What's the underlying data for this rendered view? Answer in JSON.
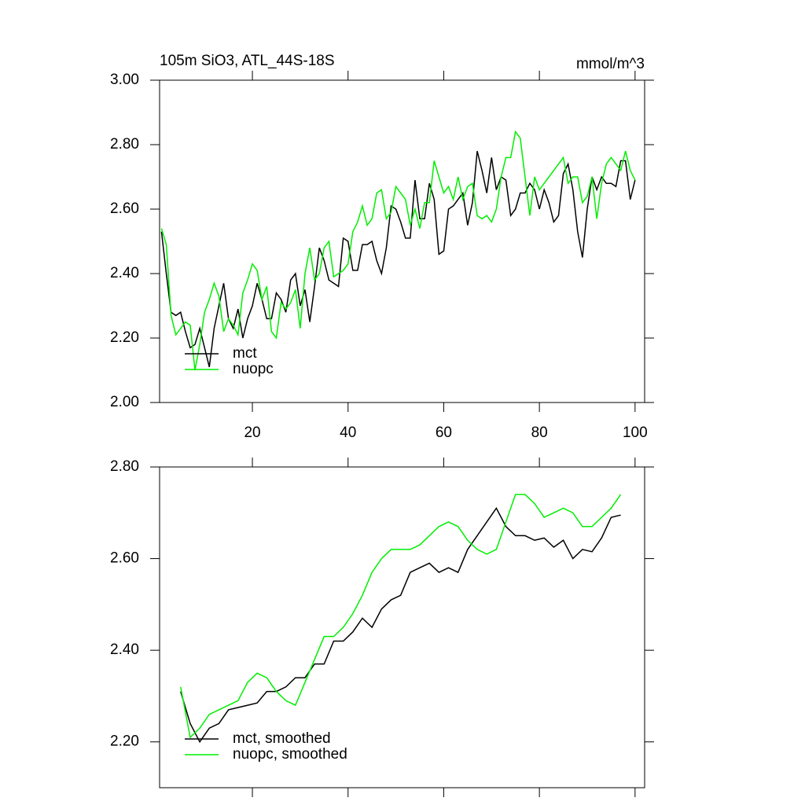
{
  "chart_data": [
    {
      "type": "line",
      "title": "105m SiO3, ATL_44S-18S",
      "units": "mmol/m^3",
      "x": [
        1,
        2,
        3,
        4,
        5,
        6,
        7,
        8,
        9,
        10,
        11,
        12,
        13,
        14,
        15,
        16,
        17,
        18,
        19,
        20,
        21,
        22,
        23,
        24,
        25,
        26,
        27,
        28,
        29,
        30,
        31,
        32,
        33,
        34,
        35,
        36,
        37,
        38,
        39,
        40,
        41,
        42,
        43,
        44,
        45,
        46,
        47,
        48,
        49,
        50,
        51,
        52,
        53,
        54,
        55,
        56,
        57,
        58,
        59,
        60,
        61,
        62,
        63,
        64,
        65,
        66,
        67,
        68,
        69,
        70,
        71,
        72,
        73,
        74,
        75,
        76,
        77,
        78,
        79,
        80,
        81,
        82,
        83,
        84,
        85,
        86,
        87,
        88,
        89,
        90,
        91,
        92,
        93,
        94,
        95,
        96,
        97,
        98,
        99,
        100
      ],
      "series": [
        {
          "name": "mct",
          "color": "#000000",
          "values": [
            2.53,
            2.4,
            2.28,
            2.27,
            2.28,
            2.22,
            2.17,
            2.18,
            2.23,
            2.17,
            2.11,
            2.23,
            2.3,
            2.37,
            2.26,
            2.23,
            2.29,
            2.2,
            2.26,
            2.3,
            2.37,
            2.32,
            2.26,
            2.26,
            2.34,
            2.32,
            2.28,
            2.38,
            2.4,
            2.3,
            2.35,
            2.25,
            2.36,
            2.48,
            2.44,
            2.38,
            2.37,
            2.36,
            2.51,
            2.5,
            2.41,
            2.41,
            2.49,
            2.49,
            2.5,
            2.44,
            2.4,
            2.48,
            2.61,
            2.6,
            2.56,
            2.51,
            2.51,
            2.69,
            2.57,
            2.57,
            2.68,
            2.63,
            2.46,
            2.47,
            2.6,
            2.61,
            2.63,
            2.65,
            2.55,
            2.62,
            2.78,
            2.72,
            2.65,
            2.76,
            2.66,
            2.7,
            2.69,
            2.58,
            2.6,
            2.65,
            2.65,
            2.68,
            2.66,
            2.6,
            2.66,
            2.62,
            2.56,
            2.58,
            2.71,
            2.74,
            2.66,
            2.53,
            2.45,
            2.6,
            2.7,
            2.66,
            2.7,
            2.68,
            2.68,
            2.67,
            2.75,
            2.75,
            2.63,
            2.69
          ]
        },
        {
          "name": "nuopc",
          "color": "#00ee00",
          "values": [
            2.54,
            2.49,
            2.27,
            2.21,
            2.23,
            2.25,
            2.24,
            2.1,
            2.18,
            2.28,
            2.32,
            2.37,
            2.33,
            2.22,
            2.26,
            2.24,
            2.21,
            2.34,
            2.38,
            2.43,
            2.41,
            2.32,
            2.36,
            2.22,
            2.2,
            2.31,
            2.29,
            2.31,
            2.35,
            2.23,
            2.4,
            2.48,
            2.38,
            2.4,
            2.48,
            2.5,
            2.39,
            2.4,
            2.41,
            2.43,
            2.53,
            2.56,
            2.61,
            2.55,
            2.57,
            2.65,
            2.66,
            2.57,
            2.59,
            2.67,
            2.65,
            2.63,
            2.55,
            2.6,
            2.54,
            2.62,
            2.62,
            2.75,
            2.7,
            2.65,
            2.67,
            2.63,
            2.7,
            2.63,
            2.67,
            2.68,
            2.58,
            2.57,
            2.58,
            2.56,
            2.6,
            2.7,
            2.76,
            2.76,
            2.84,
            2.82,
            2.7,
            2.58,
            2.7,
            2.66,
            2.68,
            2.7,
            2.72,
            2.74,
            2.76,
            2.68,
            2.7,
            2.7,
            2.62,
            2.64,
            2.7,
            2.57,
            2.68,
            2.74,
            2.76,
            2.74,
            2.72,
            2.78,
            2.72,
            2.69
          ]
        }
      ],
      "xlim": [
        0.6,
        102
      ],
      "xticks": [
        20,
        40,
        60,
        80,
        100
      ],
      "xtick_labels": true,
      "ylim": [
        2.0,
        3.0
      ],
      "yticks": [
        {
          "value": 2.0,
          "label": "2.00"
        },
        {
          "value": 2.2,
          "label": "2.20"
        },
        {
          "value": 2.4,
          "label": "2.40"
        },
        {
          "value": 2.6,
          "label": "2.60"
        },
        {
          "value": 2.8,
          "label": "2.80"
        },
        {
          "value": 3.0,
          "label": "3.00"
        }
      ],
      "legend": "lower left"
    },
    {
      "type": "line",
      "x": [
        5,
        7,
        9,
        11,
        13,
        15,
        17,
        19,
        21,
        23,
        25,
        27,
        29,
        31,
        33,
        35,
        37,
        39,
        41,
        43,
        45,
        47,
        49,
        51,
        53,
        55,
        57,
        59,
        61,
        63,
        65,
        67,
        69,
        71,
        73,
        75,
        77,
        79,
        81,
        83,
        85,
        87,
        89,
        91,
        93,
        95,
        97
      ],
      "series": [
        {
          "name": "mct, smoothed",
          "color": "#000000",
          "values": [
            2.31,
            2.24,
            2.2,
            2.23,
            2.24,
            2.27,
            2.275,
            2.28,
            2.285,
            2.31,
            2.31,
            2.32,
            2.34,
            2.34,
            2.37,
            2.37,
            2.42,
            2.42,
            2.44,
            2.47,
            2.45,
            2.49,
            2.51,
            2.52,
            2.57,
            2.58,
            2.59,
            2.57,
            2.58,
            2.57,
            2.62,
            2.65,
            2.68,
            2.71,
            2.67,
            2.65,
            2.65,
            2.64,
            2.645,
            2.625,
            2.64,
            2.6,
            2.62,
            2.615,
            2.645,
            2.69,
            2.695
          ]
        },
        {
          "name": "nuopc, smoothed",
          "color": "#00ee00",
          "values": [
            2.32,
            2.21,
            2.23,
            2.26,
            2.27,
            2.28,
            2.29,
            2.33,
            2.35,
            2.34,
            2.31,
            2.29,
            2.28,
            2.33,
            2.38,
            2.43,
            2.43,
            2.45,
            2.48,
            2.52,
            2.57,
            2.6,
            2.62,
            2.62,
            2.62,
            2.63,
            2.65,
            2.67,
            2.68,
            2.67,
            2.64,
            2.62,
            2.61,
            2.62,
            2.68,
            2.74,
            2.74,
            2.72,
            2.69,
            2.7,
            2.71,
            2.7,
            2.67,
            2.67,
            2.69,
            2.71,
            2.74
          ]
        }
      ],
      "xlim": [
        0.6,
        102
      ],
      "xticks": [
        20,
        40,
        60,
        80,
        100
      ],
      "xtick_labels": false,
      "ylim": [
        2.1,
        2.8
      ],
      "yticks": [
        {
          "value": 2.2,
          "label": "2.20"
        },
        {
          "value": 2.4,
          "label": "2.40"
        },
        {
          "value": 2.6,
          "label": "2.60"
        },
        {
          "value": 2.8,
          "label": "2.80"
        }
      ],
      "legend": "lower left"
    }
  ]
}
